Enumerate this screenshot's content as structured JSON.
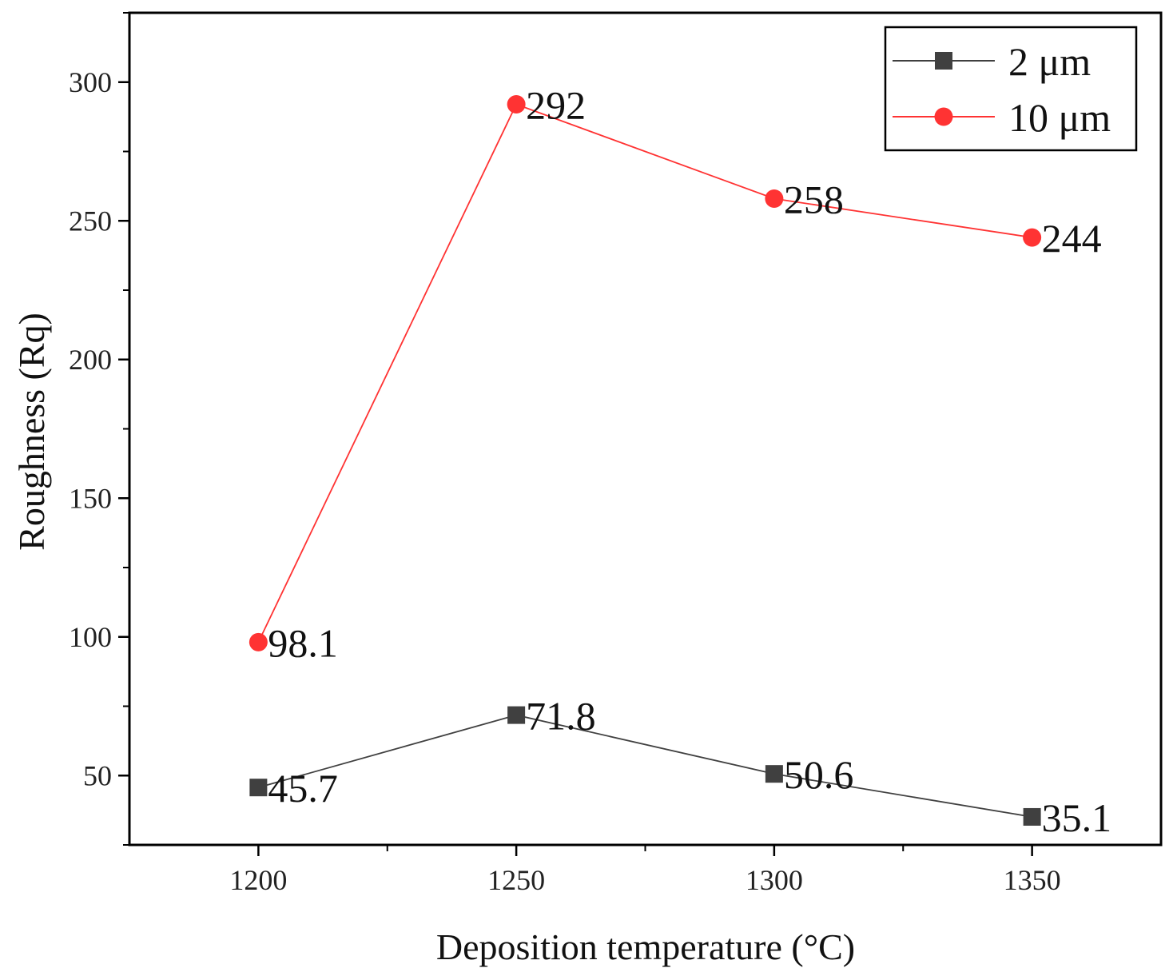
{
  "chart_data": {
    "type": "line",
    "title": "",
    "xlabel": "Deposition temperature (°C)",
    "ylabel": "Roughness (Rq)",
    "x": [
      1200,
      1250,
      1300,
      1350
    ],
    "x_tick_labels": [
      "1200",
      "1250",
      "1300",
      "1350"
    ],
    "y_tick_labels": [
      "50",
      "100",
      "150",
      "200",
      "250",
      "300"
    ],
    "xlim": [
      1175,
      1375
    ],
    "ylim": [
      25,
      325
    ],
    "grid": false,
    "legend_position": "top-right",
    "series": [
      {
        "name": "2 μm",
        "color": "#404040",
        "marker": "square",
        "values": [
          45.7,
          71.8,
          50.6,
          35.1
        ],
        "labels": [
          "45.7",
          "71.8",
          "50.6",
          "35.1"
        ]
      },
      {
        "name": "10 μm",
        "color": "#ff3333",
        "marker": "circle",
        "values": [
          98.1,
          292,
          258,
          244
        ],
        "labels": [
          "98.1",
          "292",
          "258",
          "244"
        ]
      }
    ]
  }
}
